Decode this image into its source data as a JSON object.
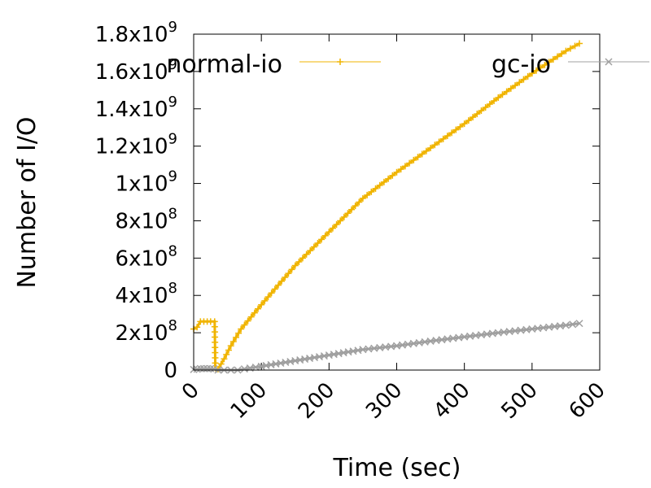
{
  "chart_data": {
    "type": "line",
    "title": "",
    "xlabel": "Time (sec)",
    "ylabel": "Number of I/O",
    "xlim": [
      0,
      600
    ],
    "ylim": [
      0,
      1800000000
    ],
    "x_ticks": [
      {
        "value": 0,
        "label": "0"
      },
      {
        "value": 100,
        "label": "100"
      },
      {
        "value": 200,
        "label": "200"
      },
      {
        "value": 300,
        "label": "300"
      },
      {
        "value": 400,
        "label": "400"
      },
      {
        "value": 500,
        "label": "500"
      },
      {
        "value": 600,
        "label": "600"
      }
    ],
    "y_ticks": [
      {
        "value": 0,
        "mantissa": "0",
        "exp": ""
      },
      {
        "value": 200000000,
        "mantissa": "2x10",
        "exp": "8"
      },
      {
        "value": 400000000,
        "mantissa": "4x10",
        "exp": "8"
      },
      {
        "value": 600000000,
        "mantissa": "6x10",
        "exp": "8"
      },
      {
        "value": 800000000,
        "mantissa": "8x10",
        "exp": "8"
      },
      {
        "value": 1000000000,
        "mantissa": "1x10",
        "exp": "9"
      },
      {
        "value": 1200000000,
        "mantissa": "1.2x10",
        "exp": "9"
      },
      {
        "value": 1400000000,
        "mantissa": "1.4x10",
        "exp": "9"
      },
      {
        "value": 1600000000,
        "mantissa": "1.6x10",
        "exp": "9"
      },
      {
        "value": 1800000000,
        "mantissa": "1.8x10",
        "exp": "9"
      }
    ],
    "legend_position": "top",
    "series": [
      {
        "name": "normal-io",
        "color": "#f0b400",
        "marker": "plus",
        "x": [
          0,
          5,
          10,
          15,
          20,
          25,
          31,
          32,
          36,
          45,
          55,
          70,
          100,
          150,
          200,
          250,
          300,
          350,
          400,
          450,
          500,
          550,
          570
        ],
        "y": [
          220000000,
          230000000,
          260000000,
          260000000,
          260000000,
          260000000,
          260000000,
          10000000,
          5000000,
          60000000,
          130000000,
          220000000,
          350000000,
          560000000,
          740000000,
          920000000,
          1060000000,
          1190000000,
          1320000000,
          1460000000,
          1590000000,
          1710000000,
          1750000000
        ]
      },
      {
        "name": "gc-io",
        "color": "#a0a0a0",
        "marker": "cross",
        "x": [
          0,
          5,
          10,
          15,
          20,
          25,
          30,
          36,
          45,
          55,
          65,
          75,
          100,
          150,
          200,
          250,
          300,
          350,
          400,
          450,
          500,
          550,
          570
        ],
        "y": [
          3000000,
          5000000,
          8000000,
          8000000,
          8000000,
          8000000,
          6000000,
          0,
          0,
          0,
          0,
          6000000,
          20000000,
          50000000,
          80000000,
          110000000,
          130000000,
          155000000,
          178000000,
          200000000,
          220000000,
          240000000,
          250000000
        ]
      }
    ]
  }
}
